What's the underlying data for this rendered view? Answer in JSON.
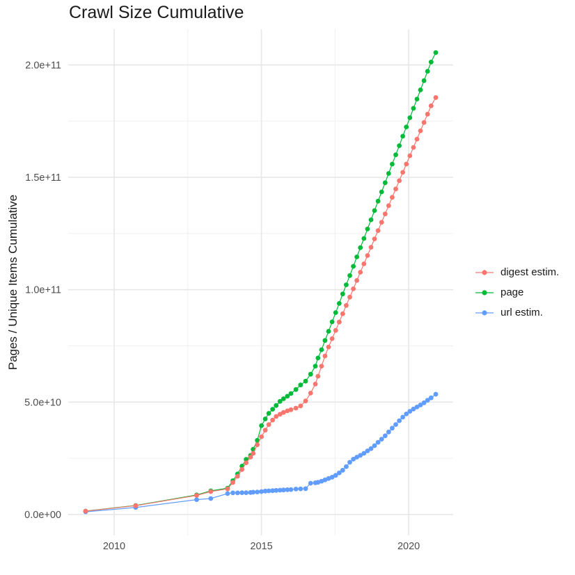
{
  "chart_data": {
    "type": "scatter",
    "title": "Crawl Size Cumulative",
    "xlabel": "",
    "ylabel": "Pages / Unique Items Cumulative",
    "grid": true,
    "legend_position": "right",
    "value_unit_multiplier": 1000000000.0,
    "x_years": [
      2009.03,
      2010.73,
      2012.8,
      2013.28,
      2013.85,
      2014.03,
      2014.19,
      2014.34,
      2014.48,
      2014.63,
      2014.72,
      2014.86,
      2015.0,
      2015.13,
      2015.25,
      2015.38,
      2015.5,
      2015.63,
      2015.75,
      2015.88,
      2016.0,
      2016.17,
      2016.33,
      2016.5,
      2016.67,
      2016.83,
      2016.92,
      2017.04,
      2017.16,
      2017.28,
      2017.4,
      2017.52,
      2017.64,
      2017.76,
      2017.88,
      2018.0,
      2018.12,
      2018.24,
      2018.36,
      2018.48,
      2018.6,
      2018.72,
      2018.84,
      2018.96,
      2019.08,
      2019.2,
      2019.32,
      2019.44,
      2019.56,
      2019.68,
      2019.8,
      2019.92,
      2020.04,
      2020.16,
      2020.28,
      2020.4,
      2020.52,
      2020.64,
      2020.76,
      2020.92
    ],
    "series": [
      {
        "name": "digest estim.",
        "color": "#F8766D",
        "values_billions": [
          1.5,
          3.9,
          8.5,
          10.2,
          11.4,
          14.2,
          17.0,
          20.0,
          23.0,
          25.5,
          27.2,
          31.0,
          34.6,
          37.5,
          40.0,
          42.0,
          43.6,
          44.6,
          45.4,
          46.1,
          46.6,
          47.3,
          48.3,
          50.5,
          54.0,
          58.0,
          61.5,
          66.0,
          70.5,
          74.5,
          78.2,
          81.9,
          85.6,
          89.3,
          93.0,
          96.7,
          100.4,
          104.1,
          107.8,
          111.5,
          115.2,
          118.9,
          122.6,
          126.3,
          130.0,
          133.7,
          137.4,
          141.1,
          144.8,
          148.5,
          152.2,
          155.9,
          159.6,
          163.3,
          167.0,
          170.7,
          174.4,
          178.1,
          181.8,
          185.5
        ]
      },
      {
        "name": "page",
        "color": "#00BA38",
        "values_billions": [
          1.5,
          4.0,
          8.7,
          10.5,
          11.7,
          15.0,
          18.0,
          21.5,
          24.5,
          26.3,
          29.0,
          33.0,
          39.5,
          42.5,
          45.0,
          46.8,
          48.5,
          50.3,
          51.5,
          52.6,
          53.8,
          55.6,
          57.6,
          59.3,
          62.4,
          66.0,
          69.6,
          73.3,
          77.4,
          81.5,
          85.7,
          89.8,
          93.9,
          98.1,
          102.2,
          106.3,
          110.4,
          114.6,
          118.7,
          122.8,
          127.0,
          131.1,
          135.2,
          139.4,
          143.5,
          147.6,
          151.7,
          155.9,
          160.0,
          164.1,
          168.3,
          172.4,
          176.5,
          180.7,
          184.8,
          188.9,
          193.0,
          197.2,
          201.3,
          205.5
        ]
      },
      {
        "name": "url estim.",
        "color": "#619CFF",
        "values_billions": [
          1.2,
          3.1,
          6.6,
          7.1,
          9.3,
          9.6,
          9.6,
          9.7,
          9.7,
          9.8,
          9.9,
          10.0,
          10.2,
          10.4,
          10.5,
          10.6,
          10.7,
          10.8,
          10.9,
          11.0,
          11.1,
          11.3,
          11.4,
          11.5,
          13.9,
          14.1,
          14.3,
          14.8,
          15.4,
          16.0,
          16.6,
          17.4,
          18.5,
          19.7,
          21.3,
          23.2,
          24.6,
          25.5,
          26.3,
          27.2,
          28.3,
          29.3,
          30.6,
          32.1,
          33.5,
          35.0,
          36.7,
          38.4,
          40.0,
          41.7,
          43.3,
          44.7,
          45.9,
          46.9,
          47.8,
          48.7,
          49.7,
          50.8,
          51.9,
          53.5
        ]
      }
    ],
    "axes": {
      "x_domain": [
        2008.44,
        2021.51
      ],
      "y_domain_billions": [
        -9.3,
        215.9
      ],
      "x_major_ticks": [
        2010,
        2015,
        2020
      ],
      "x_tick_labels": [
        "2010",
        "2015",
        "2020"
      ],
      "x_minor_ticks": [
        2012.5,
        2017.5
      ],
      "y_major_ticks_billions": [
        0,
        50,
        100,
        150,
        200
      ],
      "y_tick_labels": [
        "0.0e+00",
        "5.0e+10",
        "1.0e+11",
        "1.5e+11",
        "2.0e+11"
      ],
      "y_minor_ticks_billions": [
        25,
        75,
        125,
        175
      ]
    },
    "style_colors": {
      "background": "#ffffff",
      "grid_major": "#e7e7e7",
      "grid_minor": "#f0f0f0",
      "tick_label": "#4d4d4d",
      "title_text": "#1a1a1a"
    }
  }
}
